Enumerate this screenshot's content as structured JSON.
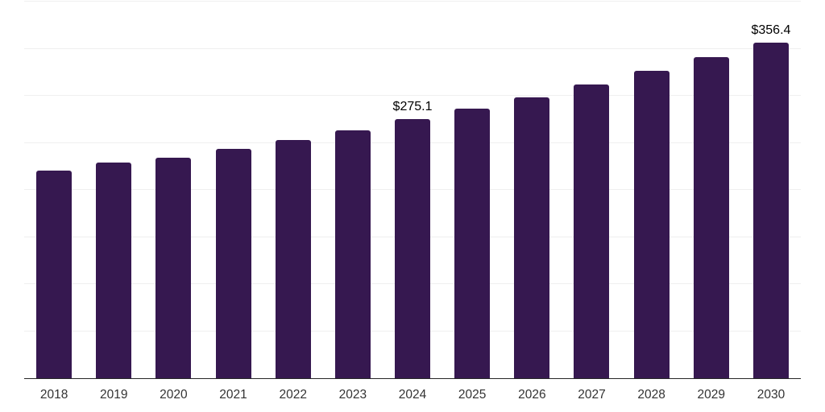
{
  "chart_data": {
    "type": "bar",
    "title": "",
    "xlabel": "",
    "ylabel": "",
    "categories": [
      "2018",
      "2019",
      "2020",
      "2021",
      "2022",
      "2023",
      "2024",
      "2025",
      "2026",
      "2027",
      "2028",
      "2029",
      "2030"
    ],
    "values": [
      220.4,
      228.7,
      234.3,
      244.0,
      253.0,
      263.2,
      275.1,
      286.5,
      298.5,
      312.1,
      326.2,
      340.7,
      356.4
    ],
    "points": [
      {
        "year": "2018",
        "value": 220.4,
        "label": ""
      },
      {
        "year": "2019",
        "value": 228.7,
        "label": ""
      },
      {
        "year": "2020",
        "value": 234.3,
        "label": ""
      },
      {
        "year": "2021",
        "value": 244.0,
        "label": ""
      },
      {
        "year": "2022",
        "value": 253.0,
        "label": ""
      },
      {
        "year": "2023",
        "value": 263.2,
        "label": ""
      },
      {
        "year": "2024",
        "value": 275.1,
        "label": "$275.1"
      },
      {
        "year": "2025",
        "value": 286.5,
        "label": ""
      },
      {
        "year": "2026",
        "value": 298.5,
        "label": ""
      },
      {
        "year": "2027",
        "value": 312.1,
        "label": ""
      },
      {
        "year": "2028",
        "value": 326.2,
        "label": ""
      },
      {
        "year": "2029",
        "value": 340.7,
        "label": ""
      },
      {
        "year": "2030",
        "value": 356.4,
        "label": "$356.4"
      }
    ],
    "y_axis": {
      "min": 0,
      "max": 400,
      "grid_step": 50,
      "tick_labels_visible": false
    },
    "legend": {
      "visible": false
    },
    "grid": "horizontal",
    "colors": {
      "bar": "#361850",
      "grid_line": "#efefef",
      "axis_line": "#262626",
      "data_label": "#000000",
      "tick_label": "#333333",
      "background": "#ffffff"
    }
  }
}
